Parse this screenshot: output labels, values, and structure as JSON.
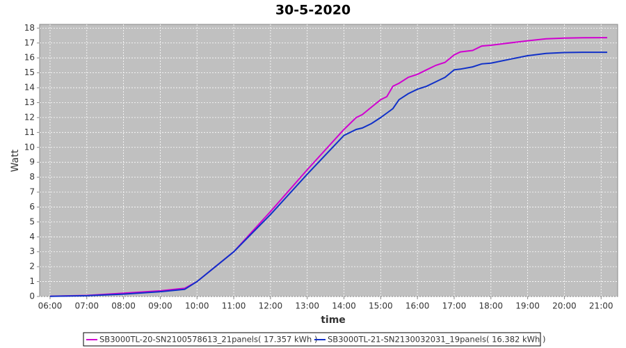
{
  "chart_data": {
    "type": "line",
    "title": "30-5-2020",
    "x_label": "time",
    "y_label": "Watt",
    "x": [
      "06:00",
      "07:00",
      "08:00",
      "09:00",
      "09:40",
      "10:00",
      "10:30",
      "11:00",
      "12:00",
      "13:00",
      "14:00",
      "14:20",
      "14:30",
      "14:45",
      "15:00",
      "15:10",
      "15:20",
      "15:30",
      "15:45",
      "16:00",
      "16:15",
      "16:30",
      "16:45",
      "17:00",
      "17:10",
      "17:30",
      "17:45",
      "18:00",
      "18:30",
      "19:00",
      "19:30",
      "20:00",
      "20:30",
      "21:00",
      "21:10"
    ],
    "series": [
      {
        "name": "SB3000TL-20-SN2100578613_21panels( 17.357 kWh )",
        "color": "#d000d0",
        "values": [
          0.02,
          0.07,
          0.22,
          0.38,
          0.55,
          1.0,
          2.0,
          3.0,
          5.7,
          8.5,
          11.2,
          12.0,
          12.2,
          12.7,
          13.2,
          13.4,
          14.1,
          14.3,
          14.7,
          14.9,
          15.2,
          15.5,
          15.7,
          16.2,
          16.4,
          16.5,
          16.8,
          16.85,
          17.0,
          17.15,
          17.28,
          17.33,
          17.35,
          17.36,
          17.36
        ]
      },
      {
        "name": "SB3000TL-21-SN2130032031_19panels( 16.382 kWh )",
        "color": "#1030c8",
        "values": [
          0.01,
          0.05,
          0.16,
          0.32,
          0.48,
          1.0,
          2.0,
          3.0,
          5.5,
          8.2,
          10.8,
          11.2,
          11.3,
          11.6,
          12.0,
          12.3,
          12.6,
          13.2,
          13.6,
          13.9,
          14.1,
          14.4,
          14.7,
          15.2,
          15.25,
          15.4,
          15.6,
          15.65,
          15.9,
          16.15,
          16.3,
          16.36,
          16.38,
          16.38,
          16.38
        ]
      }
    ],
    "xlim": [
      "05:43",
      "21:27"
    ],
    "xticks": [
      "06:00",
      "07:00",
      "08:00",
      "09:00",
      "10:00",
      "11:00",
      "12:00",
      "13:00",
      "14:00",
      "15:00",
      "16:00",
      "17:00",
      "18:00",
      "19:00",
      "20:00",
      "21:00"
    ],
    "ylim": [
      0,
      18.25
    ],
    "yticks": [
      0,
      1,
      2,
      3,
      4,
      5,
      6,
      7,
      8,
      9,
      10,
      11,
      12,
      13,
      14,
      15,
      16,
      17,
      18
    ],
    "grid": true,
    "legend": "bottom"
  }
}
